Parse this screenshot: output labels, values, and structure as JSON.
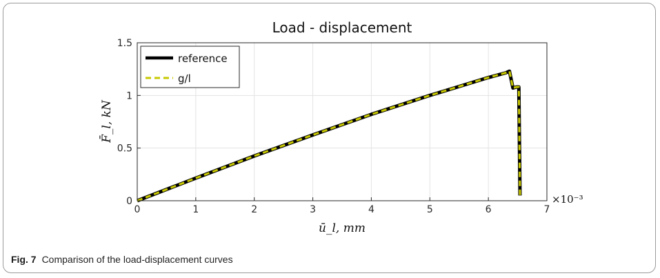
{
  "caption": {
    "label": "Fig. 7",
    "text": "Comparison of the load-displacement curves"
  },
  "chart_data": {
    "type": "line",
    "title": "Load - displacement",
    "xlabel": "ū_l, mm",
    "ylabel": "F̄_l, kN",
    "x_multiplier_label": "×10⁻³",
    "xlim": [
      0,
      7
    ],
    "ylim": [
      0,
      1.5
    ],
    "x_ticks": [
      "0",
      "1",
      "2",
      "3",
      "4",
      "5",
      "6",
      "7"
    ],
    "y_ticks": [
      "0",
      "0.5",
      "1",
      "1.5"
    ],
    "grid": true,
    "legend_position": "top-left",
    "series": [
      {
        "name": "reference",
        "color": "#000000",
        "style": "solid",
        "x": [
          0,
          1,
          2,
          3,
          4,
          5,
          5.5,
          6.0,
          6.3,
          6.36,
          6.42,
          6.48,
          6.52,
          6.54
        ],
        "y": [
          0,
          0.215,
          0.425,
          0.625,
          0.82,
          1.0,
          1.085,
          1.17,
          1.215,
          1.23,
          1.07,
          1.08,
          1.08,
          0.05
        ]
      },
      {
        "name": "g/l",
        "color": "#c8c800",
        "style": "dashed",
        "x": [
          0,
          1,
          2,
          3,
          4,
          5,
          5.5,
          6.0,
          6.3,
          6.36,
          6.42,
          6.48,
          6.52,
          6.54
        ],
        "y": [
          0,
          0.215,
          0.425,
          0.625,
          0.82,
          1.0,
          1.085,
          1.17,
          1.215,
          1.23,
          1.07,
          1.08,
          1.08,
          0.05
        ]
      }
    ]
  }
}
